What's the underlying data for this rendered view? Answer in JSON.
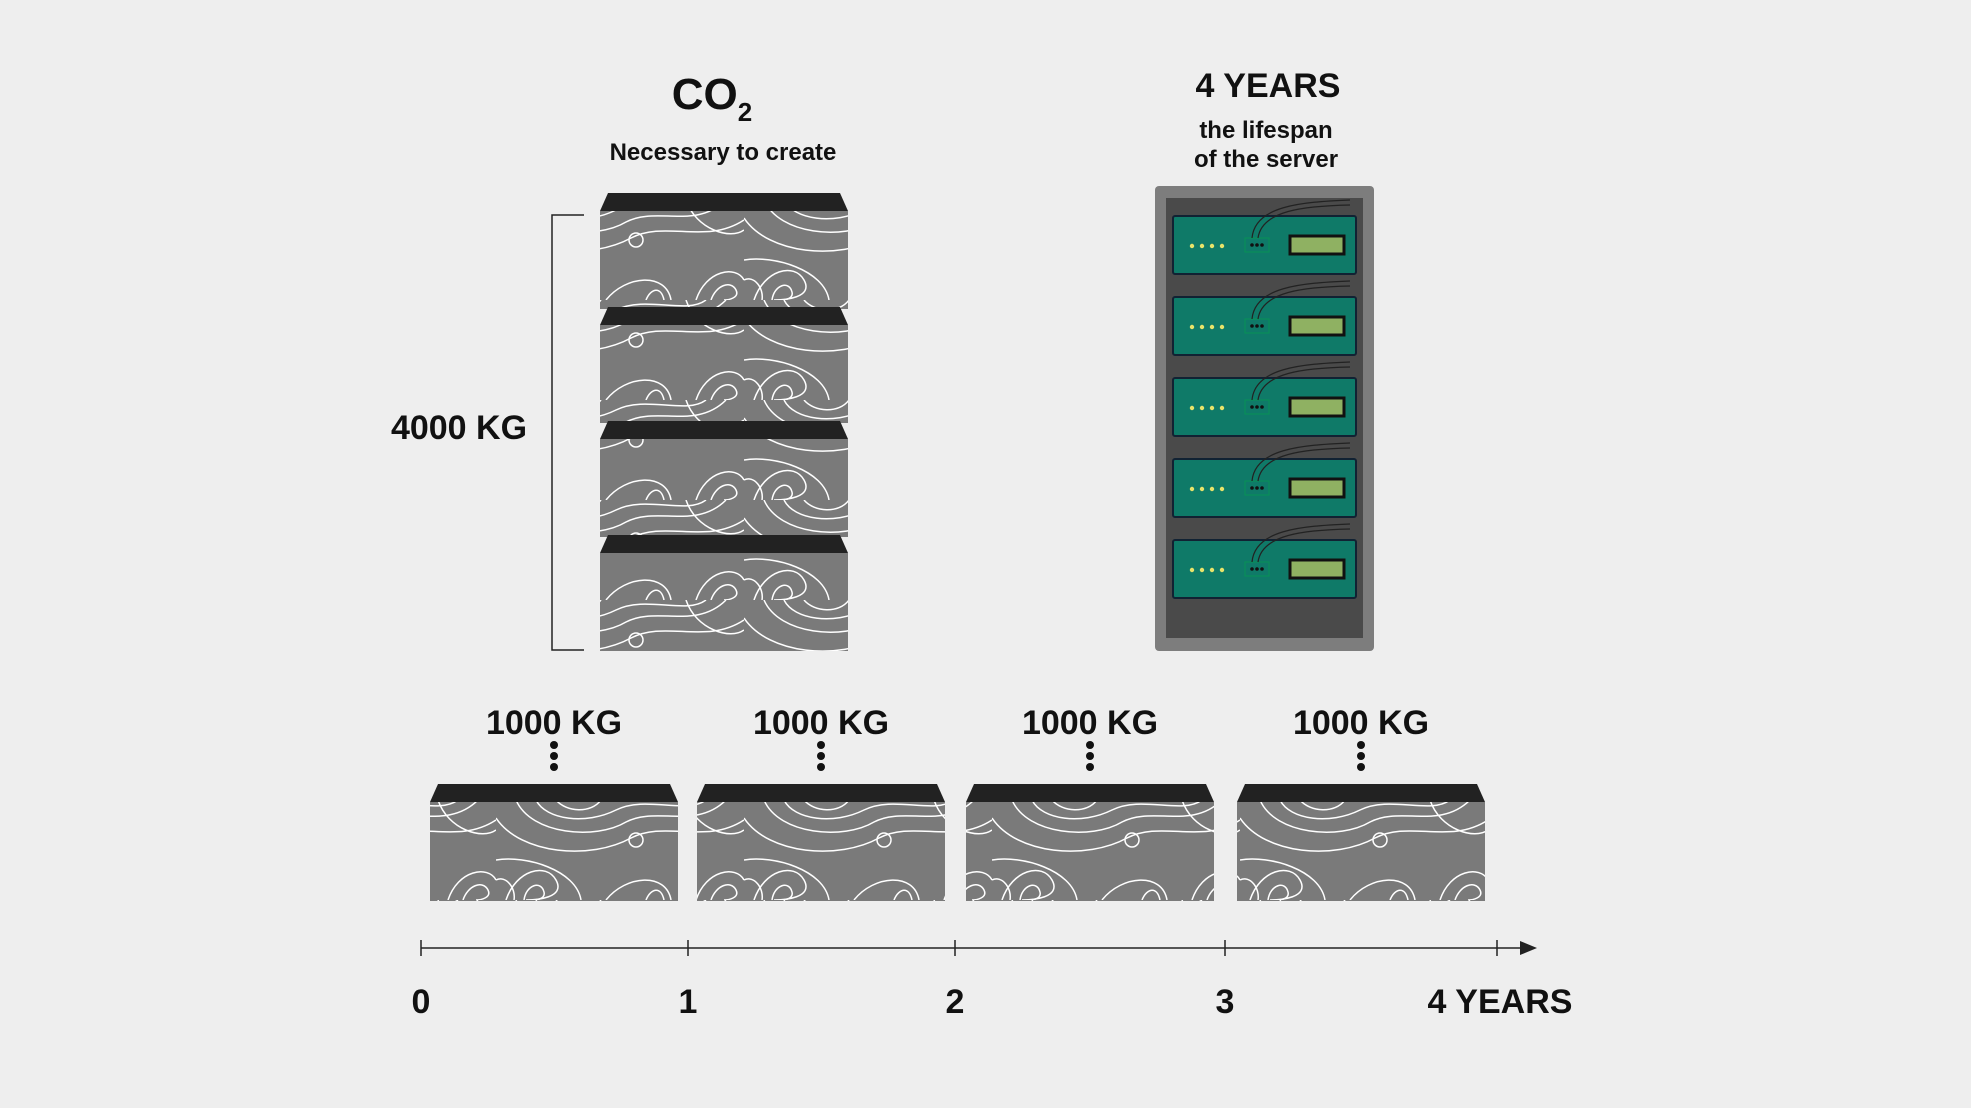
{
  "header": {
    "co2_main": "CO",
    "co2_sub": "2",
    "co2_caption": "Necessary to create",
    "lifespan_title": "4 YEARS",
    "lifespan_line1": "the lifespan",
    "lifespan_line2": "of the server"
  },
  "total": {
    "label": "4000 KG"
  },
  "total_blocks": 4,
  "server": {
    "units": 5
  },
  "yearly": [
    {
      "label": "1000 KG"
    },
    {
      "label": "1000 KG"
    },
    {
      "label": "1000 KG"
    },
    {
      "label": "1000 KG"
    }
  ],
  "timeline": {
    "ticks": [
      "0",
      "1",
      "2",
      "3"
    ],
    "end_label": "4 YEARS"
  },
  "colors": {
    "background": "#eeeeee",
    "block_fill": "#7a7a7a",
    "block_top": "#222222",
    "contour": "#ffffff",
    "rack_outer": "#7d7d7d",
    "rack_inner": "#4a4a4a",
    "server_unit": "#0f7a68",
    "server_display": "#8fb162",
    "server_led": "#e8e36a"
  }
}
